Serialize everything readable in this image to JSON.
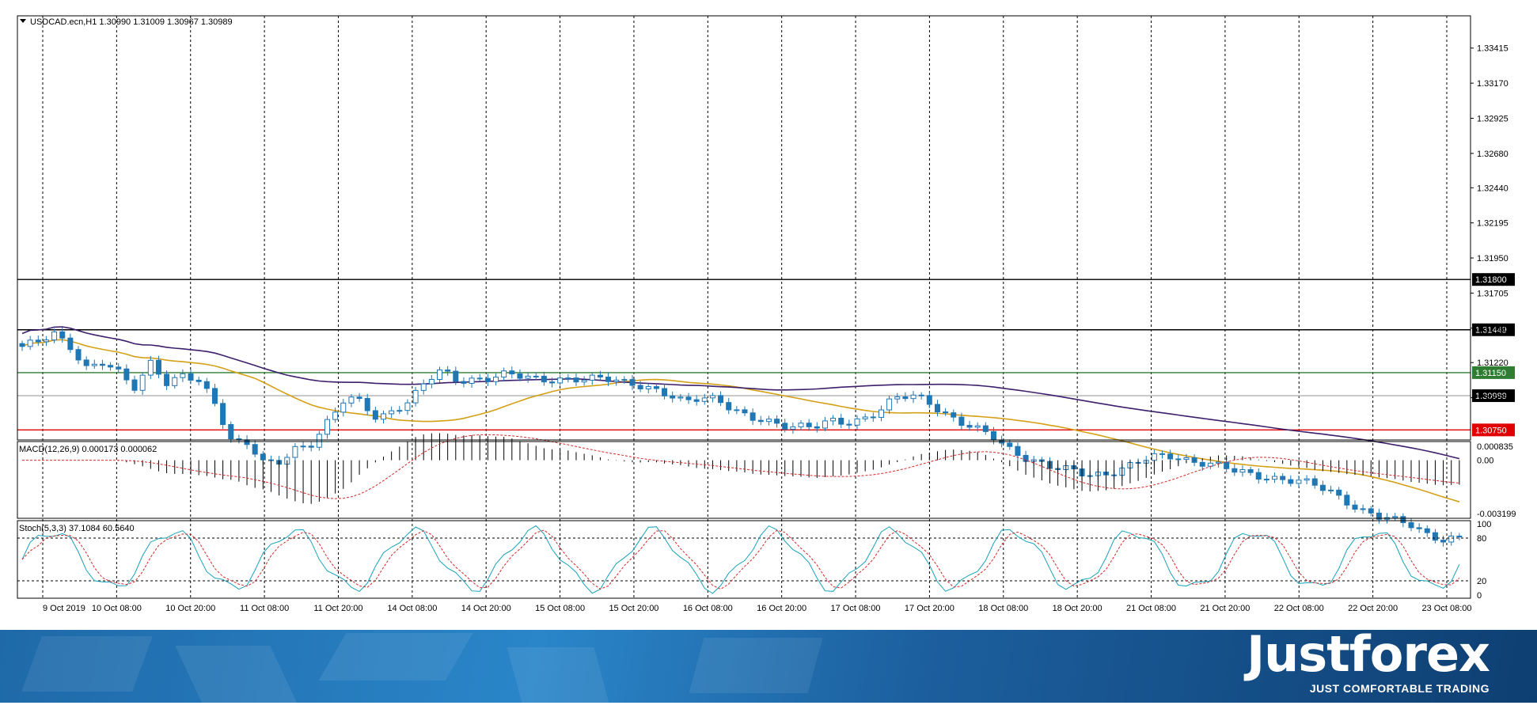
{
  "header": {
    "symbol_line": "USDCAD.ecn,H1  1.30990 1.31009 1.30967 1.30989"
  },
  "indicators": {
    "macd_label": "MACD(12,26,9) 0.000173 0.000062",
    "macd_ticks": [
      "0.000835",
      "0.00",
      "-0.003199"
    ],
    "stoch_label": "Stoch(5,3,3) 37.1084 60.5640",
    "stoch_ticks": [
      "100",
      "80",
      "20",
      "0"
    ]
  },
  "chart_data": {
    "type": "candlestick",
    "symbol": "USDCAD.ecn",
    "timeframe": "H1",
    "ohlc_current": {
      "open": 1.3099,
      "high": 1.31009,
      "low": 1.30967,
      "close": 1.30989
    },
    "y_ticks": [
      "1.33415",
      "1.33170",
      "1.32925",
      "1.32680",
      "1.32440",
      "1.32195",
      "1.31950",
      "1.31705",
      "1.31460",
      "1.31220",
      "1.30975"
    ],
    "ylim": [
      1.3068,
      1.3364
    ],
    "x_labels": [
      "9 Oct 2019",
      "10 Oct 08:00",
      "10 Oct 20:00",
      "11 Oct 08:00",
      "11 Oct 20:00",
      "14 Oct 08:00",
      "14 Oct 20:00",
      "15 Oct 08:00",
      "15 Oct 20:00",
      "16 Oct 08:00",
      "16 Oct 20:00",
      "17 Oct 08:00",
      "17 Oct 20:00",
      "18 Oct 08:00",
      "18 Oct 20:00",
      "21 Oct 08:00",
      "21 Oct 20:00",
      "22 Oct 08:00",
      "22 Oct 20:00",
      "23 Oct 08:00"
    ],
    "price_anchors": [
      1.3132,
      1.3136,
      1.3143,
      1.3134,
      1.3118,
      1.3121,
      1.3114,
      1.3105,
      1.3124,
      1.3107,
      1.3112,
      1.3108,
      1.3093,
      1.3068,
      1.3066,
      1.305,
      1.3052,
      1.3063,
      1.3067,
      1.3082,
      1.3096,
      1.3094,
      1.3083,
      1.309,
      1.3095,
      1.3108,
      1.3116,
      1.311,
      1.3111,
      1.3111,
      1.3113,
      1.3112,
      1.3111,
      1.3111,
      1.311,
      1.3109,
      1.3111,
      1.311,
      1.3108,
      1.3103,
      1.3098,
      1.3094,
      1.3099,
      1.3098,
      1.3089,
      1.3082,
      1.3081,
      1.3079,
      1.3079,
      1.3077,
      1.308,
      1.3079,
      1.3083,
      1.3089,
      1.3097,
      1.3098,
      1.3095,
      1.3088,
      1.3082,
      1.3076,
      1.307,
      1.3062,
      1.3057,
      1.3053,
      1.3048,
      1.3046,
      1.3043,
      1.3045,
      1.3048,
      1.3052,
      1.3055,
      1.3057,
      1.3055,
      1.3053,
      1.305,
      1.3046,
      1.3044,
      1.3043,
      1.3041,
      1.3039,
      1.3036,
      1.3032,
      1.3026,
      1.3019,
      1.3014,
      1.3011,
      1.3009,
      1.3003,
      1.2999,
      1.2999
    ],
    "horizontal_levels": [
      {
        "value": 1.318,
        "label": "1.31800",
        "color": "#000000"
      },
      {
        "value": 1.31449,
        "label": "1.31449",
        "color": "#000000"
      },
      {
        "value": 1.3115,
        "label": "1.31150",
        "color": "#2e7d32"
      },
      {
        "value": 1.30989,
        "label": "1.30989",
        "color": "#000000"
      },
      {
        "value": 1.3075,
        "label": "1.30750",
        "color": "#e00000"
      }
    ],
    "colors": {
      "bull": "#ffffff",
      "bear": "#1f77b4",
      "ma_fast": "#d4a017",
      "ma_slow": "#3d1f6b",
      "macd_signal": "#d62728",
      "stoch_main": "#17a2b8",
      "stoch_signal": "#d62728"
    }
  },
  "brand": {
    "name": "Justforex",
    "tagline": "JUST COMFORTABLE TRADING"
  }
}
